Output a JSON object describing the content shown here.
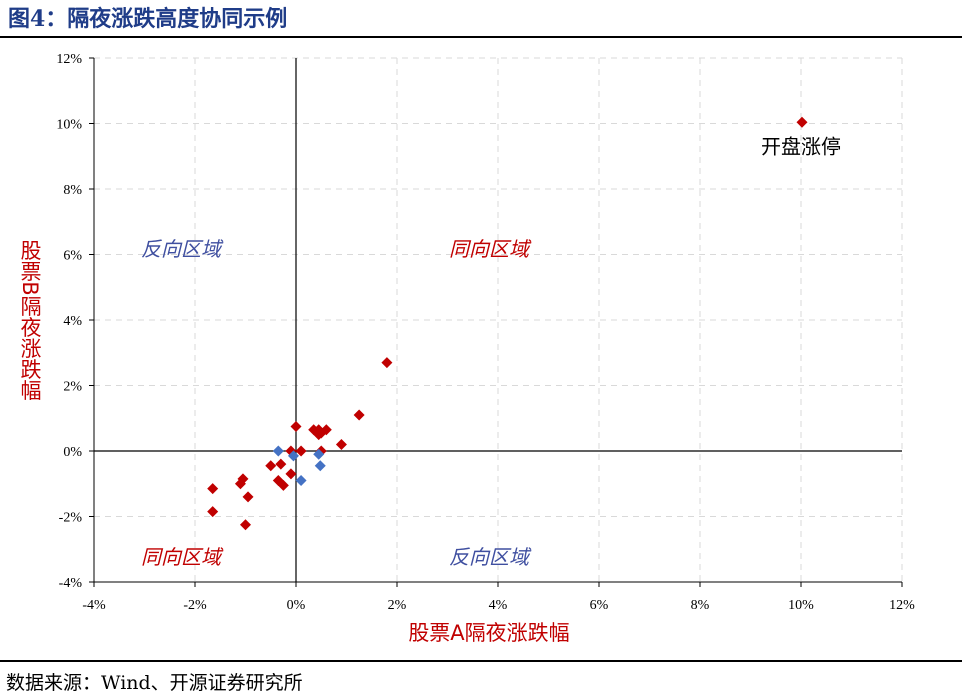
{
  "figure": {
    "title": "图4：隔夜涨跌高度协同示例",
    "source": "数据来源：Wind、开源证券研究所"
  },
  "colors": {
    "title": "#1f3c88",
    "red_series": "#c00000",
    "blue_series": "#4472c4",
    "axis_title": "#c00000",
    "region_blue": "#3f4fa0",
    "grid": "#d9d9d9"
  },
  "chart_data": {
    "type": "scatter",
    "xlabel": "股票A隔夜涨跌幅",
    "ylabel": "股票B隔夜涨跌幅",
    "xlim": [
      -0.04,
      0.12
    ],
    "ylim": [
      -0.04,
      0.12
    ],
    "x_ticks": [
      "-4%",
      "-2%",
      "0%",
      "2%",
      "4%",
      "6%",
      "8%",
      "10%",
      "12%"
    ],
    "y_ticks": [
      "-4%",
      "-2%",
      "0%",
      "2%",
      "4%",
      "6%",
      "8%",
      "10%",
      "12%"
    ],
    "grid": true,
    "regions": {
      "top_left": "反向区域",
      "top_right": "同向区域",
      "bottom_left": "同向区域",
      "bottom_right": "反向区域"
    },
    "annotation": {
      "text": "开盘涨停",
      "x": 0.1,
      "y": 0.1
    },
    "series": [
      {
        "color": "#c00000",
        "marker": "diamond",
        "points": [
          [
            0.1002,
            0.1004
          ],
          [
            0.018,
            0.027
          ],
          [
            0.0125,
            0.011
          ],
          [
            0.009,
            0.002
          ],
          [
            0.006,
            0.0065
          ],
          [
            0.0045,
            0.0065
          ],
          [
            0.0035,
            0.0065
          ],
          [
            0.005,
            0.0055
          ],
          [
            0.0045,
            0.005
          ],
          [
            0.005,
            0.0
          ],
          [
            0.0,
            0.0075
          ],
          [
            0.001,
            0.0
          ],
          [
            -0.001,
            0.0
          ],
          [
            -0.001,
            -0.007
          ],
          [
            -0.003,
            -0.004
          ],
          [
            -0.005,
            -0.0045
          ],
          [
            -0.0035,
            -0.009
          ],
          [
            -0.0025,
            -0.0105
          ],
          [
            -0.0095,
            -0.014
          ],
          [
            -0.0105,
            -0.0085
          ],
          [
            -0.011,
            -0.01
          ],
          [
            -0.0165,
            -0.0115
          ],
          [
            -0.0165,
            -0.0185
          ],
          [
            -0.01,
            -0.0225
          ]
        ]
      },
      {
        "color": "#4472c4",
        "marker": "diamond",
        "points": [
          [
            -0.0035,
            0.0
          ],
          [
            -0.0005,
            -0.0015
          ],
          [
            0.001,
            -0.009
          ],
          [
            0.0045,
            -0.001
          ],
          [
            0.0048,
            -0.0045
          ]
        ]
      }
    ]
  }
}
